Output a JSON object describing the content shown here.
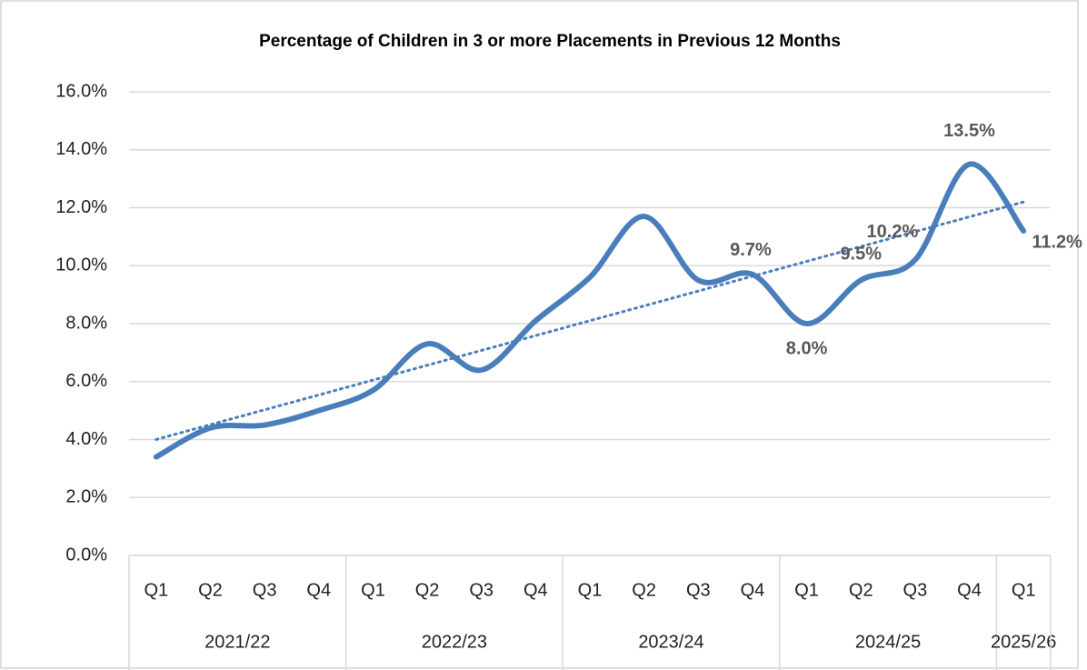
{
  "chart_data": {
    "type": "line",
    "title": "Percentage of Children in 3 or more Placements in Previous 12 Months",
    "categories": [
      "Q1",
      "Q2",
      "Q3",
      "Q4",
      "Q1",
      "Q2",
      "Q3",
      "Q4",
      "Q1",
      "Q2",
      "Q3",
      "Q4",
      "Q1",
      "Q2",
      "Q3",
      "Q4",
      "Q1"
    ],
    "groups": [
      {
        "name": "2021/22",
        "count": 4
      },
      {
        "name": "2022/23",
        "count": 4
      },
      {
        "name": "2023/24",
        "count": 4
      },
      {
        "name": "2024/25",
        "count": 4
      },
      {
        "name": "2025/26",
        "count": 1
      }
    ],
    "series": [
      {
        "color": "#4a7ebb",
        "values": [
          3.4,
          4.4,
          4.5,
          5.0,
          5.7,
          7.3,
          6.4,
          8.1,
          9.6,
          11.7,
          9.5,
          9.7,
          8.0,
          9.5,
          10.2,
          13.5,
          11.2
        ],
        "value_labels": [
          null,
          null,
          null,
          null,
          null,
          null,
          null,
          null,
          null,
          null,
          null,
          "9.7%",
          "8.0%",
          "9.5%",
          "10.2%",
          "13.5%",
          "11.2%"
        ]
      }
    ],
    "trendline": {
      "type": "linear",
      "color": "#4a7ebb",
      "style": "dotted"
    },
    "ylim": [
      0,
      16
    ],
    "yticks": [
      {
        "value": 0,
        "label": "0.0%"
      },
      {
        "value": 2,
        "label": "2.0%"
      },
      {
        "value": 4,
        "label": "4.0%"
      },
      {
        "value": 6,
        "label": "6.0%"
      },
      {
        "value": 8,
        "label": "8.0%"
      },
      {
        "value": 10,
        "label": "10.0%"
      },
      {
        "value": 12,
        "label": "12.0%"
      },
      {
        "value": 14,
        "label": "14.0%"
      },
      {
        "value": 16,
        "label": "16.0%"
      }
    ],
    "grid": true
  }
}
